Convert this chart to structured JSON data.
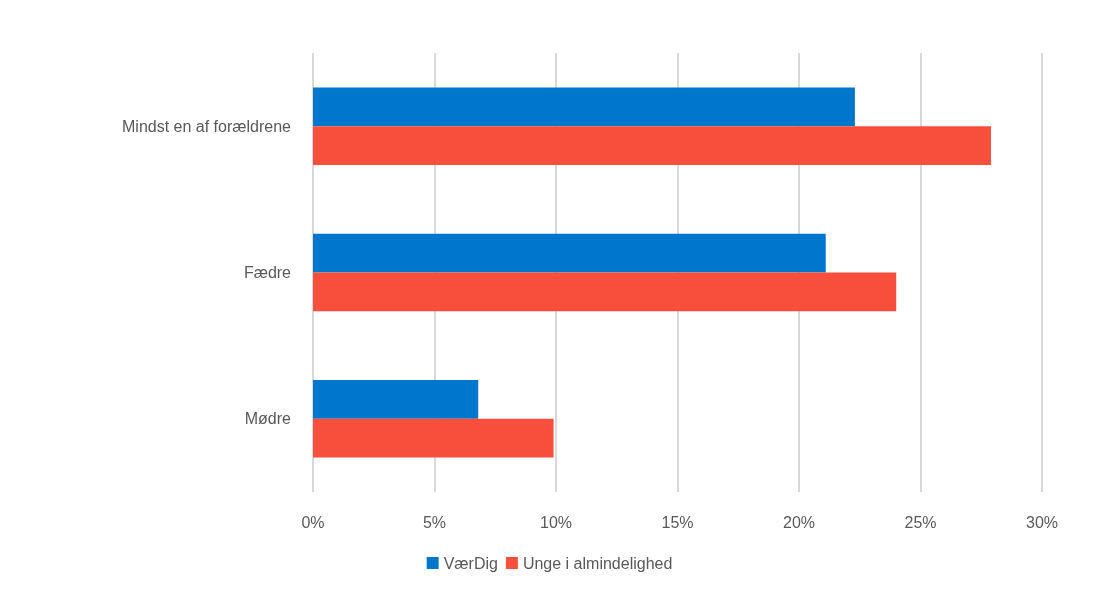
{
  "chart_data": {
    "type": "bar",
    "orientation": "horizontal",
    "categories": [
      "Mindst en af forældrene",
      "Fædre",
      "Mødre"
    ],
    "series": [
      {
        "name": "VærDig",
        "color": "#0077cc",
        "values": [
          22.3,
          21.1,
          6.8
        ]
      },
      {
        "name": "Unge i almindelighed",
        "color": "#f84e3c",
        "values": [
          27.9,
          24.0,
          9.9
        ]
      }
    ],
    "xlim": [
      0,
      30
    ],
    "xticks": [
      {
        "value": 0,
        "label": "0%"
      },
      {
        "value": 5,
        "label": "5%"
      },
      {
        "value": 10,
        "label": "10%"
      },
      {
        "value": 15,
        "label": "15%"
      },
      {
        "value": 20,
        "label": "20%"
      },
      {
        "value": 25,
        "label": "25%"
      },
      {
        "value": 30,
        "label": "30%"
      }
    ],
    "grid": "x",
    "legend": "bottom"
  }
}
